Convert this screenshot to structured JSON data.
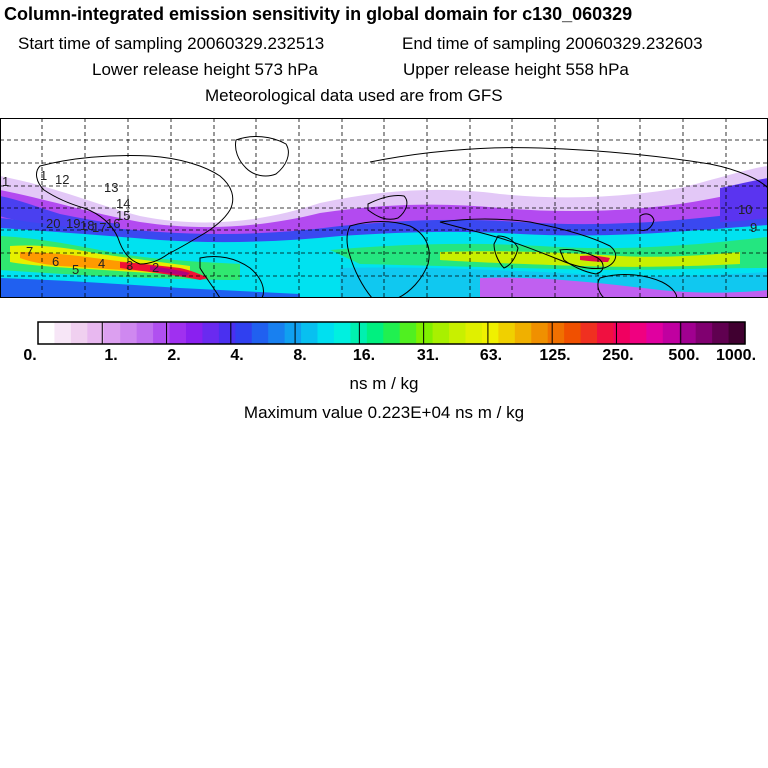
{
  "header": {
    "title": "Column-integrated emission sensitivity in global domain for c130_060329",
    "start_label": "Start time of sampling 20060329.232513",
    "end_label": "End time of sampling 20060329.232603",
    "lower_label": "Lower release height  573 hPa",
    "upper_label": "Upper release height  558 hPa",
    "met_label": "Meteorological data used are from GFS"
  },
  "map": {
    "trajectory_labels": [
      "1",
      "1",
      "12",
      "13",
      "14",
      "15",
      "16",
      "17",
      "18",
      "19",
      "20",
      "6",
      "7",
      "5",
      "4",
      "3",
      "2",
      "10",
      "9"
    ],
    "field_colors": {
      "background": "#ffffff",
      "low": "#e6ccf5",
      "violet": "#b84cf0",
      "blue": "#3b3bf0",
      "cyan": "#00e5f0",
      "green": "#19e67a",
      "yellow": "#f0f000",
      "orange": "#ff8c00",
      "red": "#f00a2a",
      "magenta": "#c0008c"
    }
  },
  "colorbar": {
    "colors": [
      "#ffffff",
      "#f7e6f7",
      "#f0d0f0",
      "#e8b8f0",
      "#dca0f0",
      "#cf88f0",
      "#c070f0",
      "#b050f0",
      "#a030f0",
      "#8a20f0",
      "#6a2af0",
      "#4a30f0",
      "#3040f0",
      "#2060f0",
      "#1880f0",
      "#10a0f0",
      "#08c0f0",
      "#00e0f0",
      "#00f0e0",
      "#00f0b0",
      "#00f080",
      "#20f050",
      "#50f020",
      "#80f000",
      "#a8f000",
      "#c8f000",
      "#e0f000",
      "#f0f000",
      "#f0d000",
      "#f0b000",
      "#f09000",
      "#f07000",
      "#f05000",
      "#f03020",
      "#f01040",
      "#f00060",
      "#f00080",
      "#e000a0",
      "#c000a0",
      "#a00090",
      "#800070",
      "#600050",
      "#400030"
    ],
    "tick_labels": [
      "0.",
      "1.",
      "2.",
      "4.",
      "8.",
      "16.",
      "31.",
      "63.",
      "125.",
      "250.",
      "500.",
      "1000."
    ],
    "units": "ns m / kg"
  },
  "footer": {
    "max_value": "Maximum value  0.223E+04 ns m / kg"
  }
}
